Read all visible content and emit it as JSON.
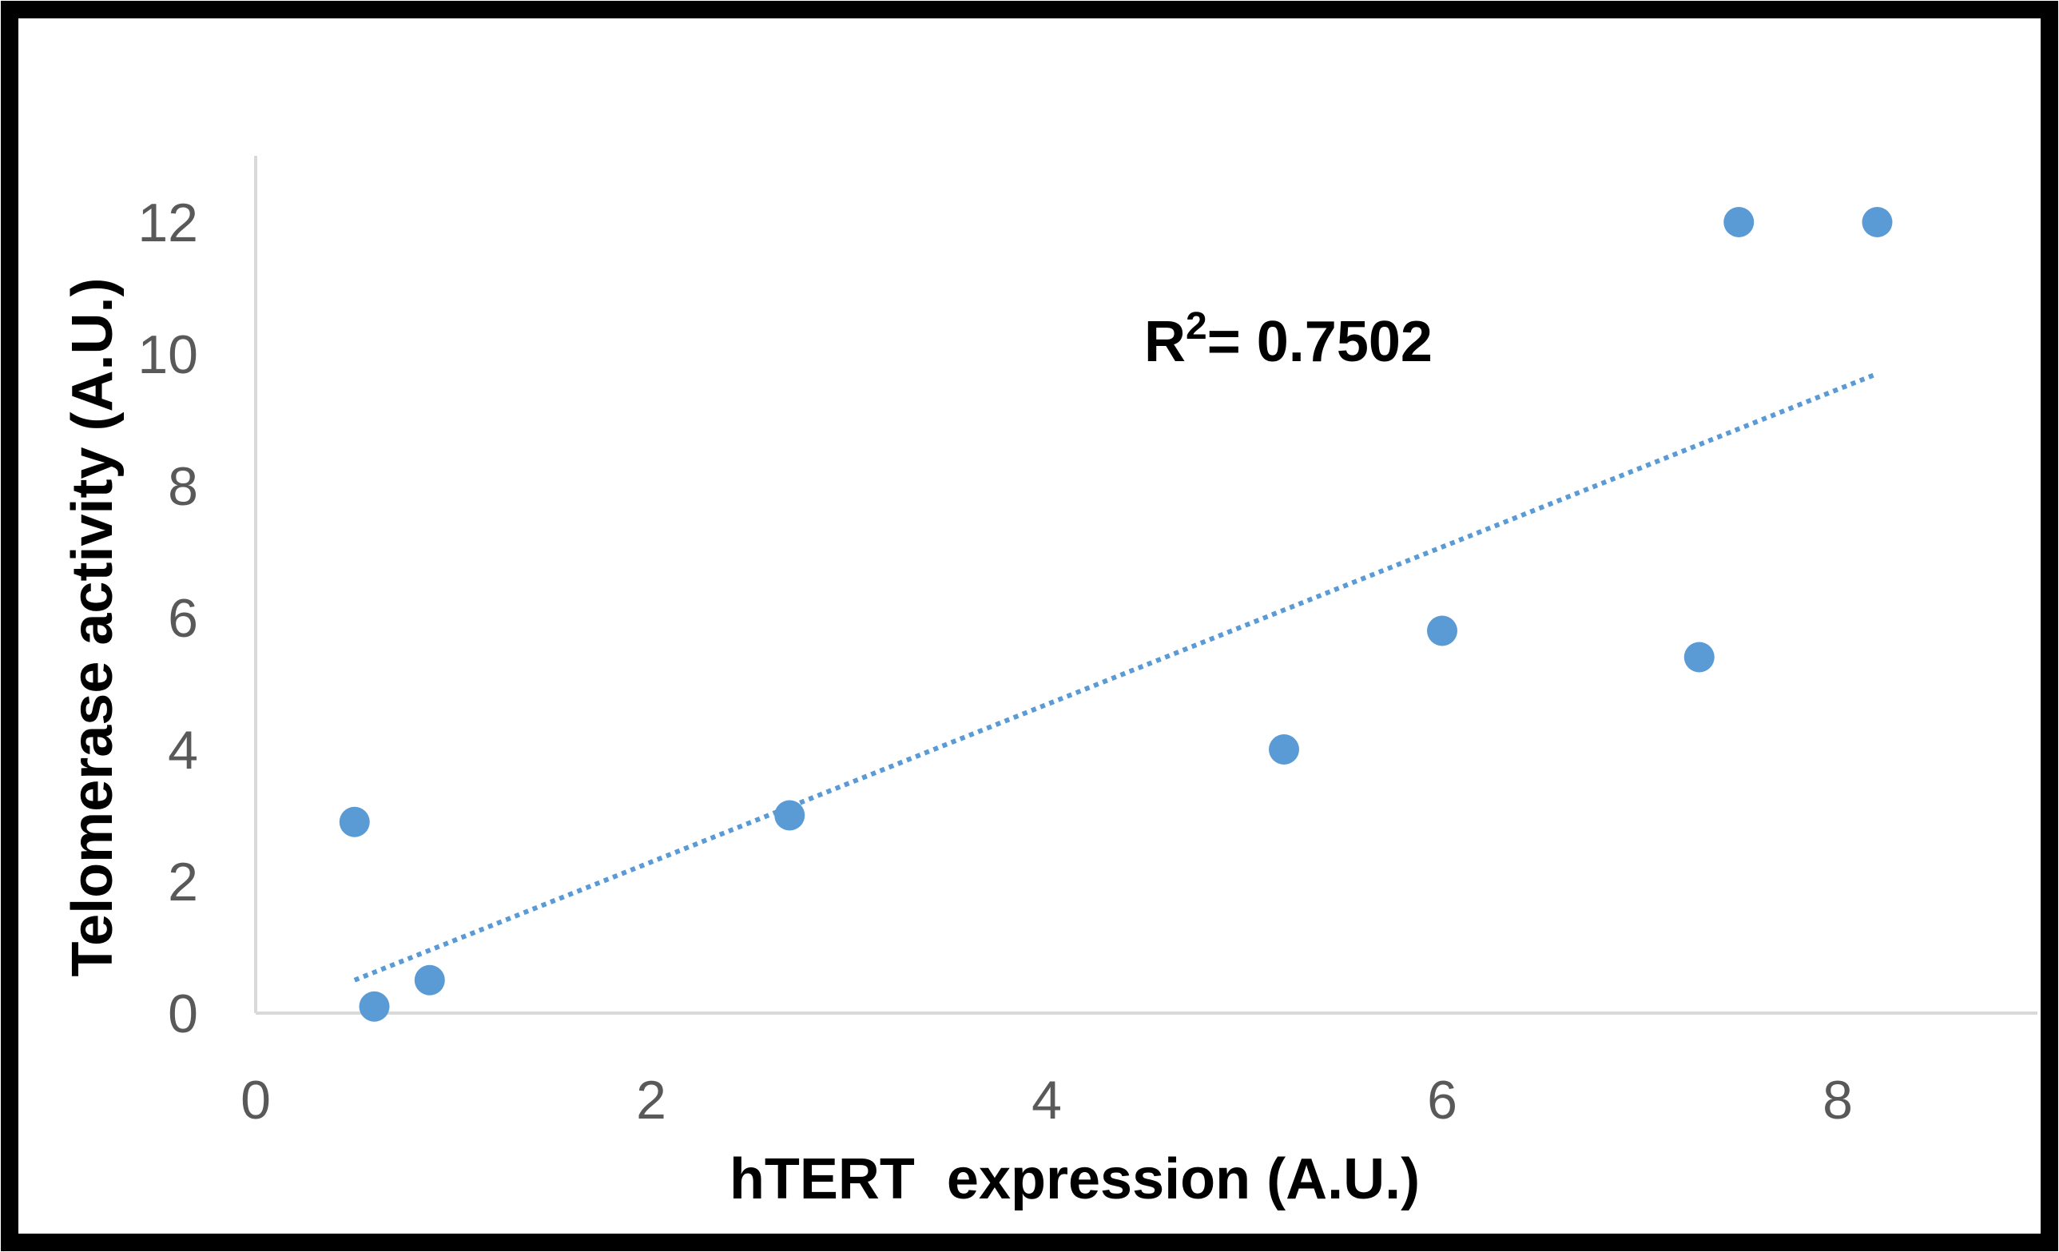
{
  "chart_data": {
    "type": "scatter",
    "title": "",
    "xlabel": "hTERT  expression (A.U.)",
    "ylabel": "Telomerase activity (A.U.)",
    "xlim": [
      0,
      9
    ],
    "ylim": [
      0,
      13
    ],
    "x_ticks": [
      0,
      2,
      4,
      6,
      8
    ],
    "y_ticks": [
      0,
      2,
      4,
      6,
      8,
      10,
      12
    ],
    "grid": false,
    "legend": "none",
    "series": [
      {
        "x": [
          0.5,
          0.6,
          0.88,
          2.7,
          5.2,
          6.0,
          7.3,
          7.5,
          8.2
        ],
        "y": [
          2.9,
          0.1,
          0.5,
          3.0,
          4.0,
          5.8,
          5.4,
          12.0,
          12.0
        ],
        "color": "#5b9bd5"
      }
    ],
    "trendline": {
      "type": "linear",
      "style": "dotted",
      "color": "#5b9bd5",
      "x_range": [
        0.5,
        8.2
      ],
      "y_range": [
        0.5,
        9.7
      ]
    },
    "annotation": {
      "prefix": "R",
      "superscript": "2",
      "suffix": "= 0.7502"
    },
    "colors": {
      "axis": "#d9d9d9",
      "frame": "#000000",
      "tick_text": "#595959"
    }
  }
}
